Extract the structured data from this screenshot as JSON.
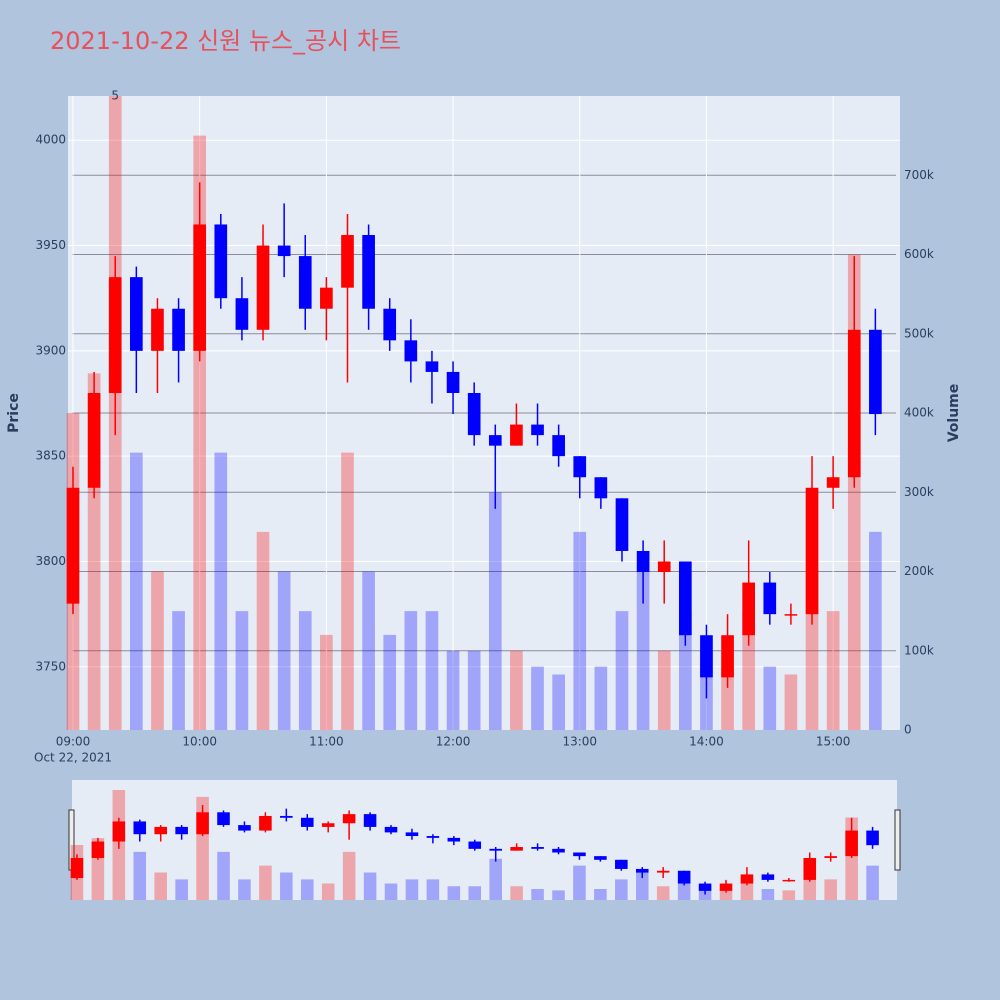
{
  "chart_data": {
    "type": "candlestick",
    "title": "2021-10-22 신원 뉴스_공시 차트",
    "annotation": "5",
    "y_label": "Price",
    "y2_label": "Volume",
    "x_date_label": "Oct 22, 2021",
    "increasing_color": "#ff0000",
    "decreasing_color": "#0000ff",
    "x": [
      "2021-10-22T09:00",
      "2021-10-22T09:10",
      "2021-10-22T09:20",
      "2021-10-22T09:30",
      "2021-10-22T09:40",
      "2021-10-22T09:50",
      "2021-10-22T10:00",
      "2021-10-22T10:10",
      "2021-10-22T10:20",
      "2021-10-22T10:30",
      "2021-10-22T10:40",
      "2021-10-22T10:50",
      "2021-10-22T11:00",
      "2021-10-22T11:10",
      "2021-10-22T11:20",
      "2021-10-22T11:30",
      "2021-10-22T11:40",
      "2021-10-22T11:50",
      "2021-10-22T12:00",
      "2021-10-22T12:10",
      "2021-10-22T12:20",
      "2021-10-22T12:30",
      "2021-10-22T12:40",
      "2021-10-22T12:50",
      "2021-10-22T13:00",
      "2021-10-22T13:10",
      "2021-10-22T13:20",
      "2021-10-22T13:30",
      "2021-10-22T13:40",
      "2021-10-22T13:50",
      "2021-10-22T14:00",
      "2021-10-22T14:10",
      "2021-10-22T14:20",
      "2021-10-22T14:30",
      "2021-10-22T14:40",
      "2021-10-22T14:50",
      "2021-10-22T15:00",
      "2021-10-22T15:10",
      "2021-10-22T15:20"
    ],
    "open": [
      3780,
      3835,
      3880,
      3935,
      3900,
      3920,
      3900,
      3960,
      3925,
      3910,
      3950,
      3945,
      3920,
      3930,
      3955,
      3920,
      3905,
      3895,
      3890,
      3880,
      3860,
      3855,
      3865,
      3860,
      3850,
      3840,
      3830,
      3805,
      3795,
      3800,
      3765,
      3745,
      3765,
      3790,
      3775,
      3775,
      3835,
      3840,
      3910
    ],
    "high": [
      3845,
      3890,
      3945,
      3940,
      3925,
      3925,
      3980,
      3965,
      3935,
      3960,
      3970,
      3955,
      3935,
      3965,
      3960,
      3925,
      3915,
      3900,
      3895,
      3885,
      3865,
      3875,
      3875,
      3865,
      3850,
      3840,
      3830,
      3810,
      3810,
      3800,
      3770,
      3775,
      3810,
      3795,
      3780,
      3850,
      3850,
      3945,
      3920
    ],
    "low": [
      3775,
      3830,
      3860,
      3880,
      3880,
      3885,
      3895,
      3920,
      3905,
      3905,
      3935,
      3910,
      3905,
      3885,
      3910,
      3900,
      3885,
      3875,
      3870,
      3855,
      3825,
      3855,
      3855,
      3845,
      3830,
      3825,
      3800,
      3780,
      3780,
      3760,
      3735,
      3740,
      3760,
      3770,
      3770,
      3770,
      3825,
      3835,
      3860
    ],
    "close": [
      3835,
      3880,
      3935,
      3900,
      3920,
      3900,
      3960,
      3925,
      3910,
      3950,
      3945,
      3920,
      3930,
      3955,
      3920,
      3905,
      3895,
      3890,
      3880,
      3860,
      3855,
      3865,
      3860,
      3850,
      3840,
      3830,
      3805,
      3795,
      3800,
      3765,
      3745,
      3765,
      3790,
      3775,
      3775,
      3835,
      3840,
      3910,
      3870
    ],
    "volume": [
      400000,
      450000,
      800000,
      350000,
      200000,
      150000,
      750000,
      350000,
      150000,
      250000,
      200000,
      150000,
      120000,
      350000,
      200000,
      120000,
      150000,
      150000,
      100000,
      100000,
      300000,
      100000,
      80000,
      70000,
      250000,
      80000,
      150000,
      200000,
      100000,
      150000,
      100000,
      80000,
      150000,
      80000,
      70000,
      200000,
      150000,
      600000,
      250000
    ],
    "xlim": [
      "2021-10-22T08:57:38",
      "2021-10-22T15:31:40"
    ],
    "xticks": [
      {
        "value": "2021-10-22T09:00",
        "label": "09:00"
      },
      {
        "value": "2021-10-22T10:00",
        "label": "10:00"
      },
      {
        "value": "2021-10-22T11:00",
        "label": "11:00"
      },
      {
        "value": "2021-10-22T12:00",
        "label": "12:00"
      },
      {
        "value": "2021-10-22T13:00",
        "label": "13:00"
      },
      {
        "value": "2021-10-22T14:00",
        "label": "14:00"
      },
      {
        "value": "2021-10-22T15:00",
        "label": "15:00"
      }
    ],
    "ylim": [
      3720,
      4021
    ],
    "yticks": [
      3750,
      3800,
      3850,
      3900,
      3950,
      4000
    ],
    "y2lim": [
      0,
      800000
    ],
    "y2ticks": [
      0,
      {
        "value": 100000,
        "label": "100k"
      },
      {
        "value": 200000,
        "label": "200k"
      },
      {
        "value": 300000,
        "label": "300k"
      },
      {
        "value": 400000,
        "label": "400k"
      },
      {
        "value": 500000,
        "label": "500k"
      },
      {
        "value": 600000,
        "label": "600k"
      },
      {
        "value": 700000,
        "label": "700k"
      }
    ],
    "grid": true,
    "rangeslider": true
  }
}
